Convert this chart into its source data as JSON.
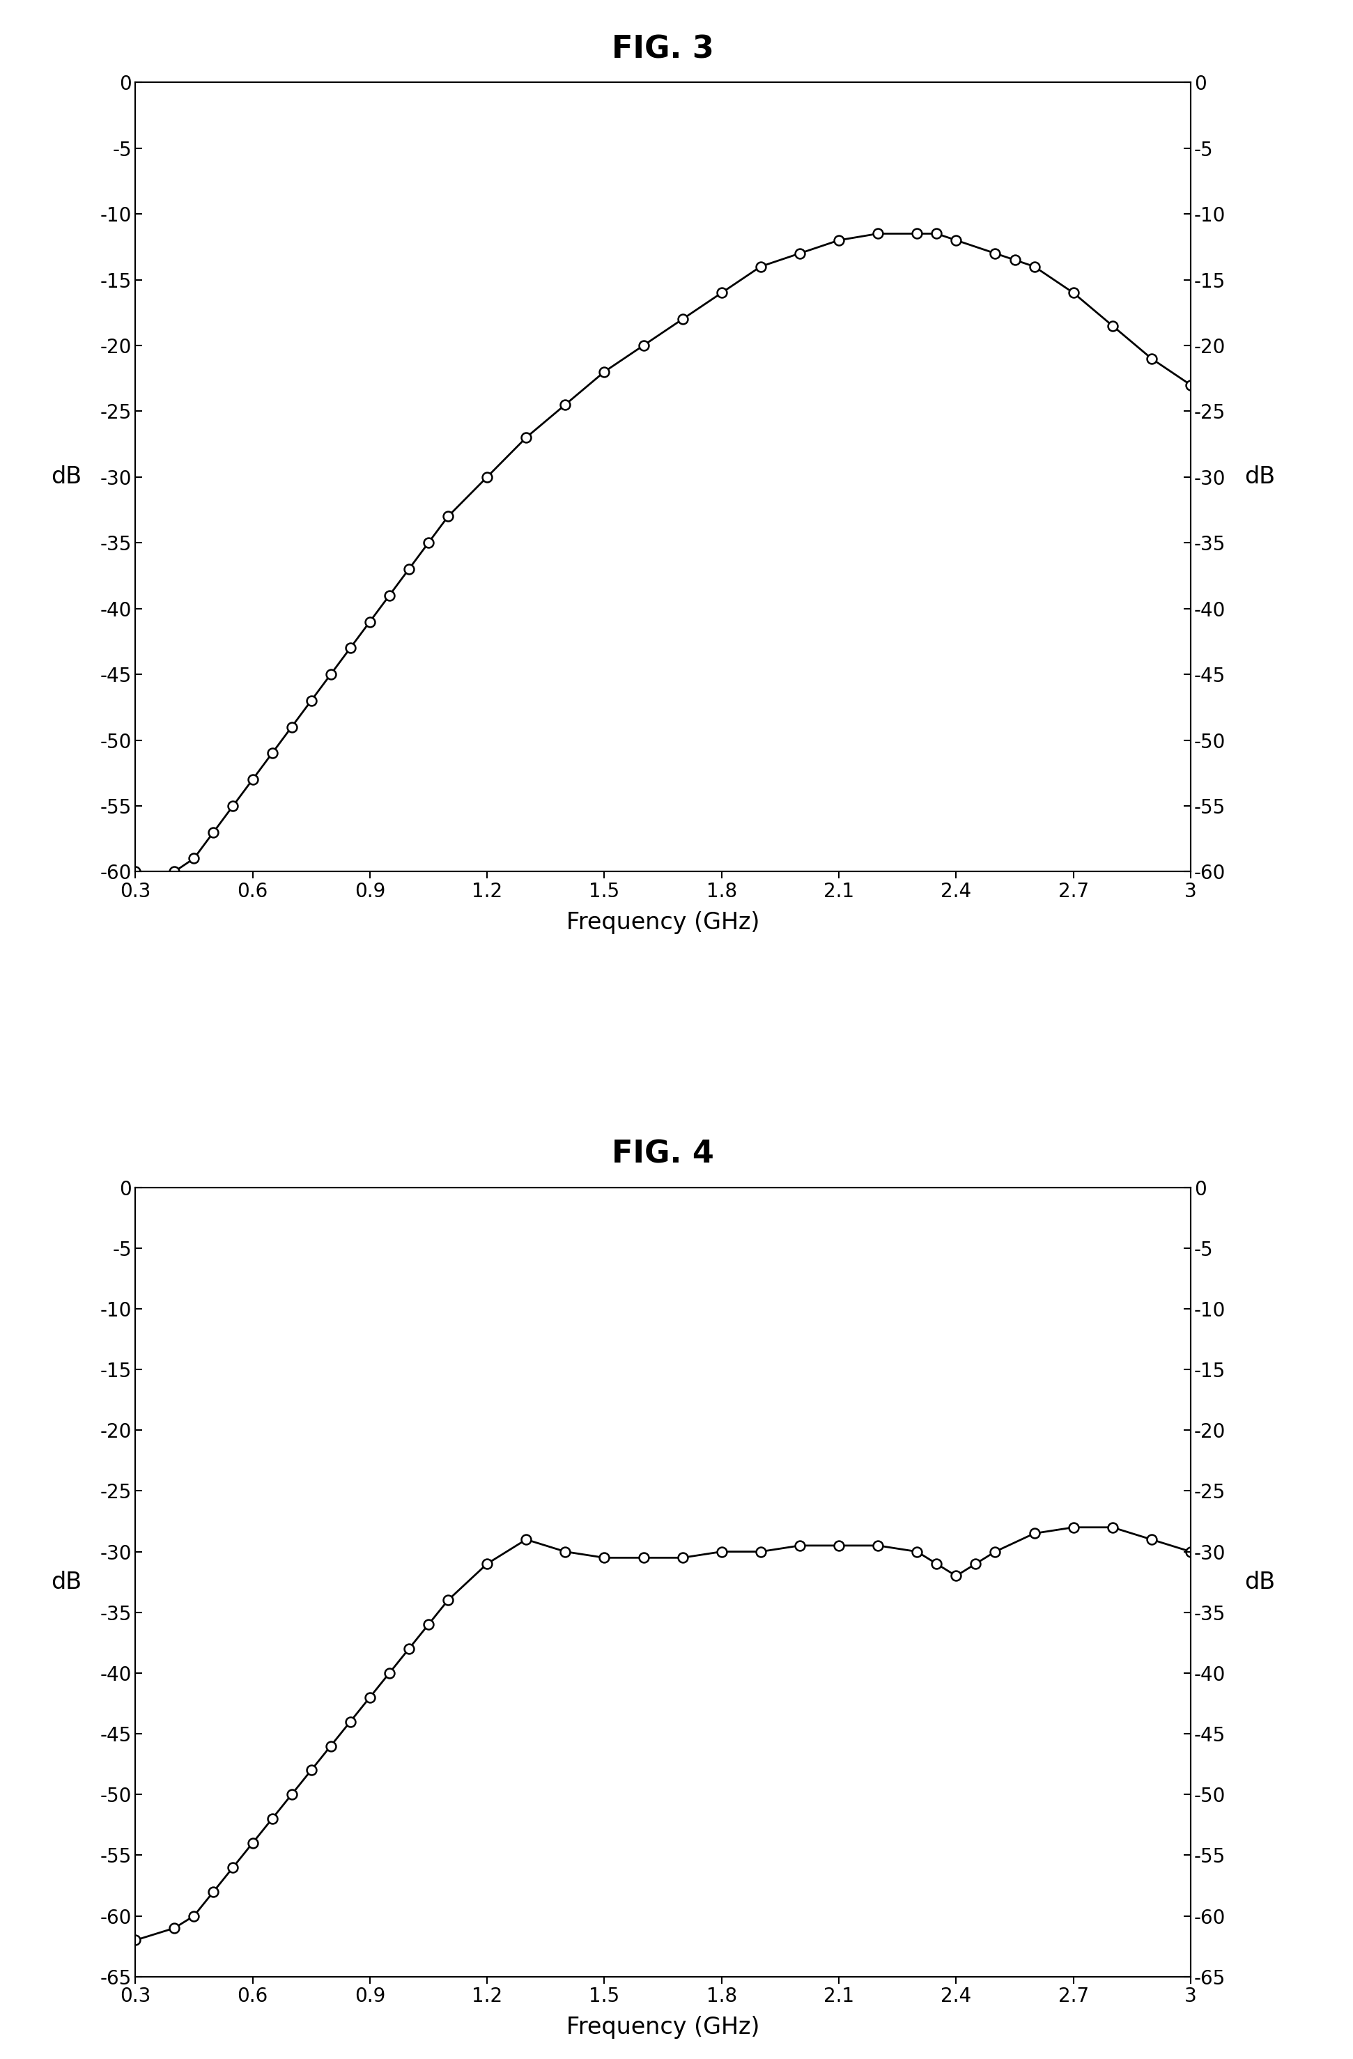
{
  "fig3_title": "FIG. 3",
  "fig4_title": "FIG. 4",
  "fig3_ylim": [
    -60,
    0
  ],
  "fig3_yticks": [
    0,
    -5,
    -10,
    -15,
    -20,
    -25,
    -30,
    -35,
    -40,
    -45,
    -50,
    -55,
    -60
  ],
  "fig4_ylim": [
    -65,
    0
  ],
  "fig4_yticks": [
    0,
    -5,
    -10,
    -15,
    -20,
    -25,
    -30,
    -35,
    -40,
    -45,
    -50,
    -55,
    -60,
    -65
  ],
  "xlim": [
    0.3,
    3.0
  ],
  "xticks": [
    0.3,
    0.6,
    0.9,
    1.2,
    1.5,
    1.8,
    2.1,
    2.4,
    2.7,
    3.0
  ],
  "xlabel": "Frequency (GHz)",
  "ylabel": "dB",
  "fig3_x": [
    0.3,
    0.4,
    0.45,
    0.5,
    0.55,
    0.6,
    0.65,
    0.7,
    0.75,
    0.8,
    0.85,
    0.9,
    0.95,
    1.0,
    1.05,
    1.1,
    1.2,
    1.3,
    1.4,
    1.5,
    1.6,
    1.7,
    1.8,
    1.9,
    2.0,
    2.1,
    2.2,
    2.3,
    2.35,
    2.4,
    2.5,
    2.55,
    2.6,
    2.7,
    2.8,
    2.9,
    3.0
  ],
  "fig3_y": [
    -60,
    -60,
    -59,
    -57,
    -55,
    -53,
    -51,
    -49,
    -47,
    -45,
    -43,
    -41,
    -39,
    -37,
    -35,
    -33,
    -30,
    -27,
    -24.5,
    -22,
    -20,
    -18,
    -16,
    -14,
    -13,
    -12,
    -11.5,
    -11.5,
    -11.5,
    -12,
    -13,
    -13.5,
    -14,
    -16,
    -18.5,
    -21,
    -23
  ],
  "fig4_x": [
    0.3,
    0.4,
    0.45,
    0.5,
    0.55,
    0.6,
    0.65,
    0.7,
    0.75,
    0.8,
    0.85,
    0.9,
    0.95,
    1.0,
    1.05,
    1.1,
    1.2,
    1.3,
    1.4,
    1.5,
    1.6,
    1.7,
    1.8,
    1.9,
    2.0,
    2.1,
    2.2,
    2.3,
    2.35,
    2.4,
    2.45,
    2.5,
    2.6,
    2.7,
    2.8,
    2.9,
    3.0
  ],
  "fig4_y": [
    -62,
    -61,
    -60,
    -58,
    -56,
    -54,
    -52,
    -50,
    -48,
    -46,
    -44,
    -42,
    -40,
    -38,
    -36,
    -34,
    -31,
    -29,
    -30,
    -30.5,
    -30.5,
    -30.5,
    -30,
    -30,
    -29.5,
    -29.5,
    -29.5,
    -30,
    -31,
    -32,
    -31,
    -30,
    -28.5,
    -28,
    -28,
    -29,
    -30
  ],
  "line_color": "#000000",
  "marker_color": "#ffffff",
  "marker_edge_color": "#000000",
  "background_color": "#ffffff",
  "title_fontsize": 32,
  "axis_label_fontsize": 24,
  "tick_fontsize": 20,
  "line_width": 2.0,
  "marker_size": 10,
  "marker_edge_width": 1.8
}
